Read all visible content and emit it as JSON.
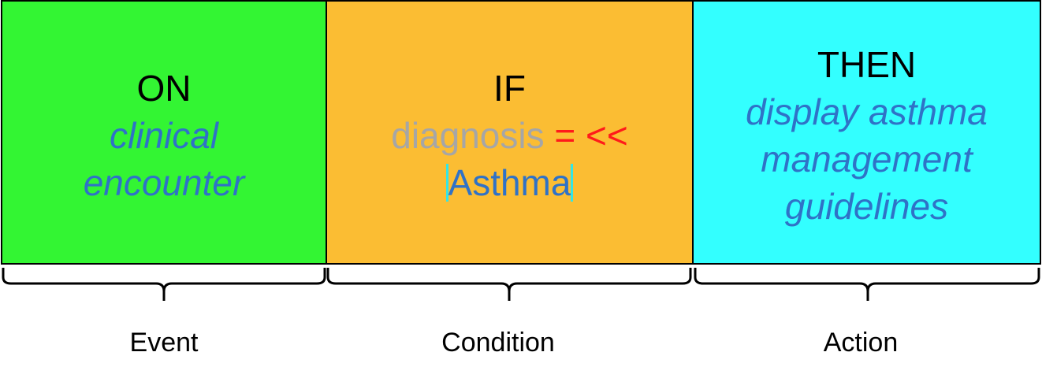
{
  "colors": {
    "event_bg": "#33f533",
    "condition_bg": "#fbbd33",
    "action_bg": "#33ffff",
    "italic_text": "#2f72c7",
    "attribute_text": "#a6a6a6",
    "operator_text": "#ff1a1a",
    "term_text": "#2f72c7",
    "term_bar": "#33e6e6"
  },
  "event": {
    "keyword": "ON",
    "line1": "clinical",
    "line2": "encounter",
    "label": "Event"
  },
  "condition": {
    "keyword": "IF",
    "attribute": "diagnosis",
    "operator": "= <<",
    "term": "Asthma",
    "label": "Condition"
  },
  "action": {
    "keyword": "THEN",
    "line1": "display asthma",
    "line2": "management",
    "line3": "guidelines",
    "label": "Action"
  }
}
